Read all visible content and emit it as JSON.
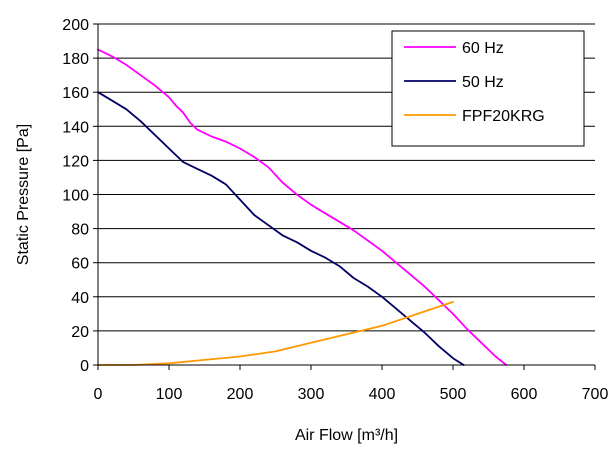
{
  "chart_data": {
    "type": "line",
    "title": "",
    "xlabel": "Air Flow  [m³/h]",
    "ylabel": "Static Pressure [Pa]",
    "xlim": [
      0,
      700
    ],
    "ylim": [
      0,
      200
    ],
    "xticks": [
      0,
      100,
      200,
      300,
      400,
      500,
      600,
      700
    ],
    "yticks": [
      0,
      20,
      40,
      60,
      80,
      100,
      120,
      140,
      160,
      180,
      200
    ],
    "grid": "horizontal",
    "legend_position": "top-right",
    "series": [
      {
        "name": "60 Hz",
        "color": "#ff00ff",
        "points": [
          [
            0,
            185
          ],
          [
            20,
            181
          ],
          [
            40,
            176
          ],
          [
            60,
            170
          ],
          [
            80,
            164
          ],
          [
            100,
            157
          ],
          [
            110,
            152
          ],
          [
            120,
            148
          ],
          [
            130,
            142
          ],
          [
            140,
            138
          ],
          [
            160,
            134
          ],
          [
            180,
            131
          ],
          [
            200,
            127
          ],
          [
            220,
            122
          ],
          [
            240,
            116
          ],
          [
            260,
            107
          ],
          [
            280,
            100
          ],
          [
            300,
            94
          ],
          [
            320,
            89
          ],
          [
            340,
            84
          ],
          [
            360,
            79
          ],
          [
            380,
            73
          ],
          [
            400,
            67
          ],
          [
            420,
            60
          ],
          [
            440,
            53
          ],
          [
            460,
            46
          ],
          [
            480,
            38
          ],
          [
            500,
            30
          ],
          [
            520,
            21
          ],
          [
            540,
            13
          ],
          [
            560,
            5
          ],
          [
            575,
            0
          ]
        ]
      },
      {
        "name": "50 Hz",
        "color": "#000066",
        "points": [
          [
            0,
            160
          ],
          [
            20,
            155
          ],
          [
            40,
            150
          ],
          [
            60,
            143
          ],
          [
            80,
            135
          ],
          [
            100,
            127
          ],
          [
            120,
            119
          ],
          [
            140,
            115
          ],
          [
            160,
            111
          ],
          [
            180,
            106
          ],
          [
            200,
            97
          ],
          [
            220,
            88
          ],
          [
            240,
            82
          ],
          [
            260,
            76
          ],
          [
            280,
            72
          ],
          [
            300,
            67
          ],
          [
            320,
            63
          ],
          [
            340,
            58
          ],
          [
            360,
            51
          ],
          [
            380,
            46
          ],
          [
            400,
            40
          ],
          [
            420,
            33
          ],
          [
            440,
            26
          ],
          [
            460,
            19
          ],
          [
            480,
            11
          ],
          [
            500,
            4
          ],
          [
            515,
            0
          ]
        ]
      },
      {
        "name": "FPF20KRG",
        "color": "#ff9900",
        "points": [
          [
            0,
            0
          ],
          [
            50,
            0
          ],
          [
            100,
            1
          ],
          [
            150,
            3
          ],
          [
            200,
            5
          ],
          [
            250,
            8
          ],
          [
            300,
            13
          ],
          [
            350,
            18
          ],
          [
            400,
            23
          ],
          [
            450,
            30
          ],
          [
            500,
            37
          ]
        ]
      }
    ]
  }
}
